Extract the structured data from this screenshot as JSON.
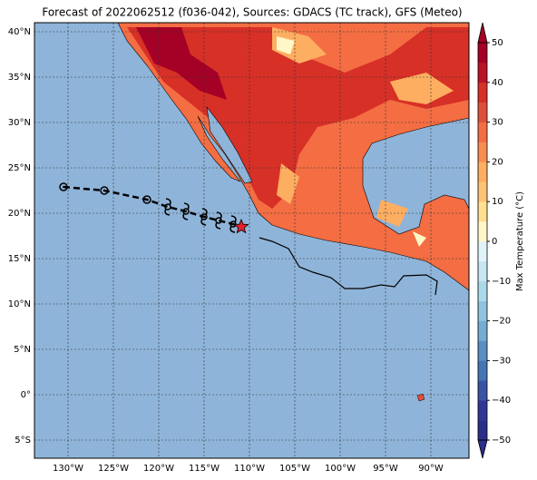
{
  "title": "Forecast of 2022062512 (f036-042), Sources: GDACS (TC track), GFS (Meteo)",
  "map": {
    "xlim": [
      -133.7,
      -85.8
    ],
    "ylim": [
      -7,
      41
    ],
    "xticks": [
      {
        "value": -130,
        "label": "130°W"
      },
      {
        "value": -125,
        "label": "125°W"
      },
      {
        "value": -120,
        "label": "120°W"
      },
      {
        "value": -115,
        "label": "115°W"
      },
      {
        "value": -110,
        "label": "110°W"
      },
      {
        "value": -105,
        "label": "105°W"
      },
      {
        "value": -100,
        "label": "100°W"
      },
      {
        "value": -95,
        "label": "95°W"
      },
      {
        "value": -90,
        "label": "90°W"
      }
    ],
    "yticks": [
      {
        "value": 40,
        "label": "40°N"
      },
      {
        "value": 35,
        "label": "35°N"
      },
      {
        "value": 30,
        "label": "30°N"
      },
      {
        "value": 25,
        "label": "25°N"
      },
      {
        "value": 20,
        "label": "20°N"
      },
      {
        "value": 15,
        "label": "15°N"
      },
      {
        "value": 10,
        "label": "10°N"
      },
      {
        "value": 5,
        "label": "5°N"
      },
      {
        "value": 0,
        "label": "0°"
      },
      {
        "value": -5,
        "label": "5°S"
      }
    ]
  },
  "track": {
    "lon": [
      -130.5,
      -126,
      -121.3,
      -119,
      -117,
      -115,
      -113.4,
      -111.8,
      -110.9
    ],
    "lat": [
      22.9,
      22.5,
      21.5,
      20.7,
      20.2,
      19.6,
      19.2,
      18.8,
      18.5
    ],
    "symbol": [
      "circle",
      "circle",
      "circle",
      "storm",
      "storm",
      "storm",
      "storm",
      "storm",
      "star"
    ]
  },
  "colorbar": {
    "label": "Max Temperature (°C)",
    "lim": [
      -50,
      50
    ],
    "ticks": [
      50,
      40,
      30,
      20,
      10,
      0,
      {
        "value": -10,
        "label": "−10"
      },
      {
        "value": -20,
        "label": "−20"
      },
      {
        "value": -30,
        "label": "−30"
      },
      {
        "value": -40,
        "label": "−40"
      },
      {
        "value": -50,
        "label": "−50"
      }
    ],
    "colors": [
      "#2a2f8a",
      "#313695",
      "#3a54a4",
      "#4575b4",
      "#5b8fc2",
      "#74add1",
      "#90c3dd",
      "#abd9e9",
      "#c6e6f0",
      "#e0f3f8",
      "#fff7c8",
      "#fee090",
      "#fdc374",
      "#fdae61",
      "#f88d52",
      "#f46d43",
      "#e04f39",
      "#d73027",
      "#b91326",
      "#a50026"
    ]
  }
}
